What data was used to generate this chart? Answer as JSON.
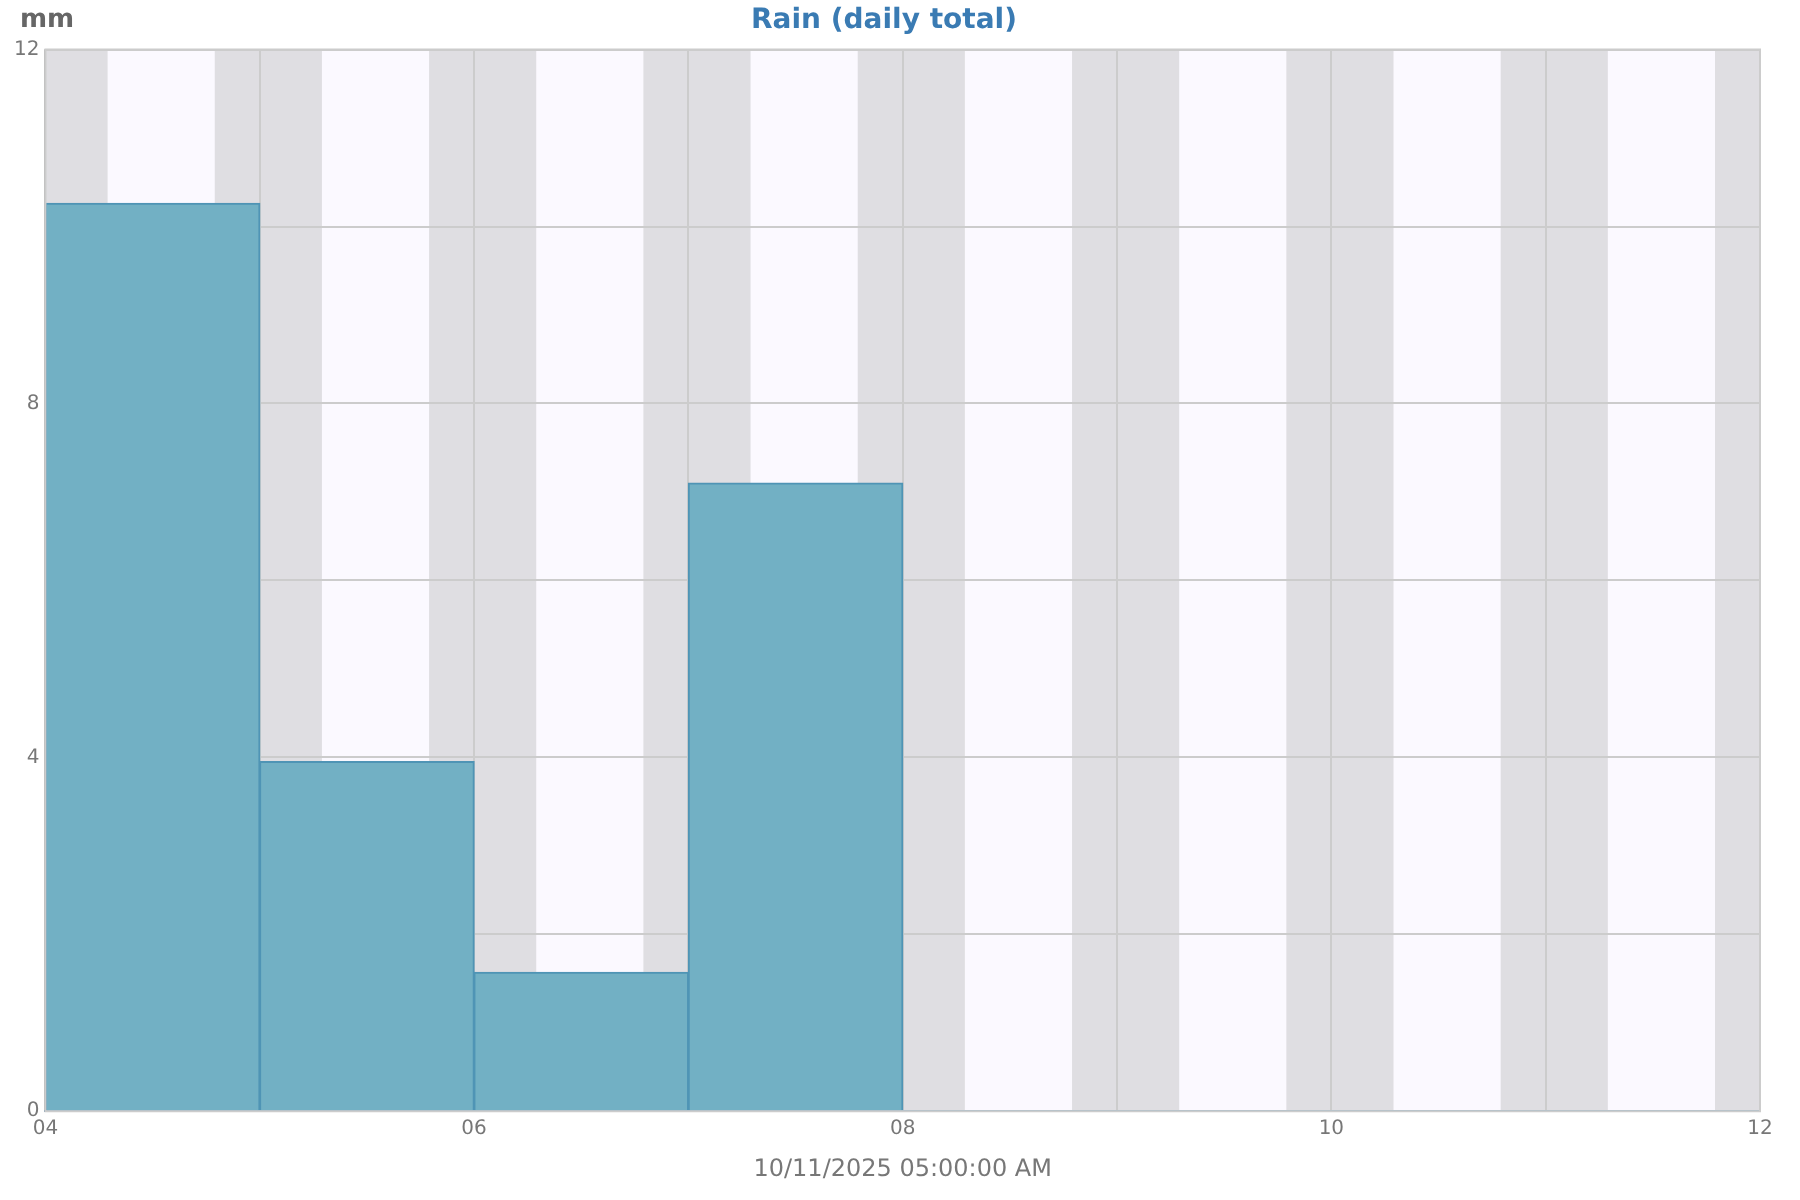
{
  "chart_data": {
    "type": "histogram",
    "title": "Rain (daily total)",
    "ylabel": "mm",
    "xlabel": "10/11/2025 05:00:00 AM",
    "bins": [
      4,
      5,
      6,
      7,
      8
    ],
    "values": [
      10.26,
      3.95,
      1.57,
      7.1
    ],
    "color": "#72b0c4",
    "xlim": [
      4,
      12
    ],
    "xticks": [
      {
        "value": 4,
        "label": "04"
      },
      {
        "value": 5,
        "label": null
      },
      {
        "value": 6,
        "label": "06"
      },
      {
        "value": 7,
        "label": null
      },
      {
        "value": 8,
        "label": "08"
      },
      {
        "value": 9,
        "label": null
      },
      {
        "value": 10,
        "label": "10"
      },
      {
        "value": 11,
        "label": null
      },
      {
        "value": 12,
        "label": "12"
      }
    ],
    "ylim": [
      0,
      12
    ],
    "yticks": [
      0,
      {
        "value": 2,
        "label": null
      },
      4,
      {
        "value": 6,
        "label": null
      },
      8,
      {
        "value": 10,
        "label": null
      },
      12
    ],
    "grid": true,
    "bands": [
      {
        "axis": "x",
        "from": 4,
        "to": 4.29,
        "color": "#dfdee2"
      },
      {
        "axis": "x",
        "from": 4.79,
        "to": 5.29,
        "color": "#dfdee2"
      },
      {
        "axis": "x",
        "from": 5.79,
        "to": 6.29,
        "color": "#dfdee2"
      },
      {
        "axis": "x",
        "from": 6.79,
        "to": 7.29,
        "color": "#dfdee2"
      },
      {
        "axis": "x",
        "from": 7.79,
        "to": 8.29,
        "color": "#dfdee2"
      },
      {
        "axis": "x",
        "from": 8.79,
        "to": 9.29,
        "color": "#dfdee2"
      },
      {
        "axis": "x",
        "from": 9.79,
        "to": 10.29,
        "color": "#dfdee2"
      },
      {
        "axis": "x",
        "from": 10.79,
        "to": 11.29,
        "color": "#dfdee2"
      },
      {
        "axis": "x",
        "from": 11.79,
        "to": 12,
        "color": "#dfdee2"
      }
    ]
  }
}
